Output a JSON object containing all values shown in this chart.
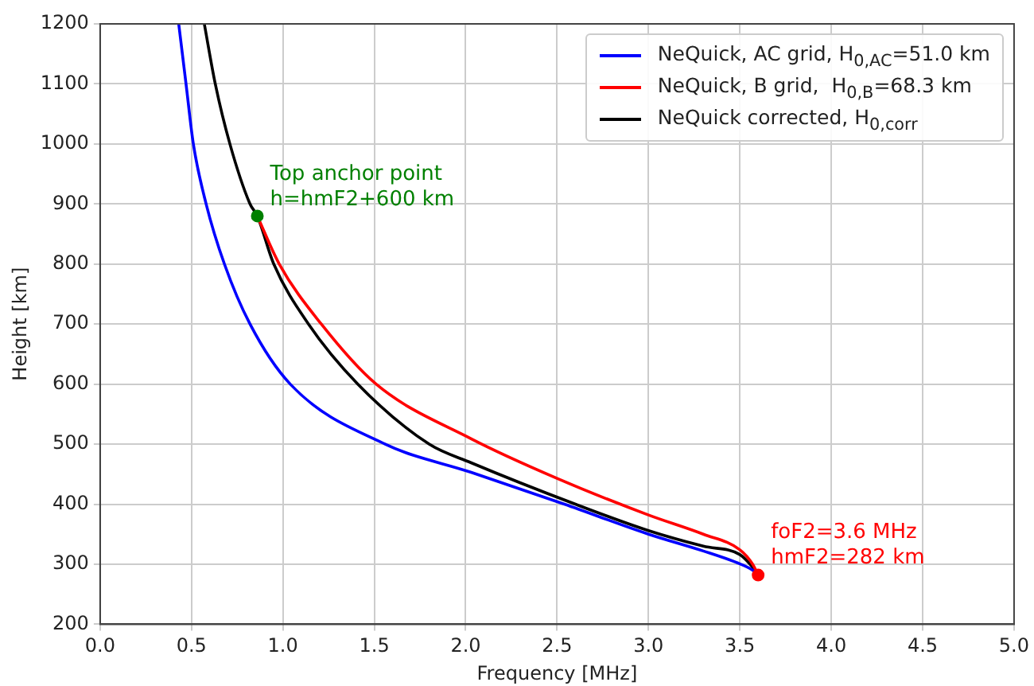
{
  "chart_data": {
    "type": "line",
    "xlabel": "Frequency [MHz]",
    "ylabel": "Height [km]",
    "xlim": [
      0,
      5
    ],
    "xticks": [
      {
        "value": 0,
        "label": "0.0"
      },
      {
        "value": 0.5,
        "label": "0.5"
      },
      {
        "value": 1,
        "label": "1.0"
      },
      {
        "value": 1.5,
        "label": "1.5"
      },
      {
        "value": 2,
        "label": "2.0"
      },
      {
        "value": 2.5,
        "label": "2.5"
      },
      {
        "value": 3,
        "label": "3.0"
      },
      {
        "value": 3.5,
        "label": "3.5"
      },
      {
        "value": 4,
        "label": "4.0"
      },
      {
        "value": 4.5,
        "label": "4.5"
      },
      {
        "value": 5,
        "label": "5.0"
      }
    ],
    "ylim": [
      200,
      1200
    ],
    "yticks": [
      200,
      300,
      400,
      500,
      600,
      700,
      800,
      900,
      1000,
      1100,
      1200
    ],
    "grid": true,
    "legend": "top right",
    "marker": "none",
    "line_style": "solid",
    "series": [
      {
        "name": "NeQuick, AC grid, H$_{0,AC}$=51.0 km",
        "color": "#0000ff",
        "x": [
          0.43,
          0.47,
          0.51,
          0.58,
          0.68,
          0.82,
          1.04,
          1.56,
          2.03,
          2.54,
          3.0,
          3.3,
          3.48,
          3.57,
          3.6
        ],
        "values": [
          1200,
          1100,
          1000,
          900,
          800,
          700,
          600,
          500,
          453,
          400,
          350,
          322,
          303,
          290,
          282
        ]
      },
      {
        "name": "NeQuick, B grid,  H$_{0,B}$=68.3 km",
        "color": "#ff0000",
        "x": [
          0.86,
          0.98,
          1.21,
          1.51,
          2.03,
          2.5,
          3.0,
          3.3,
          3.5,
          3.57,
          3.6
        ],
        "values": [
          880,
          800,
          700,
          600,
          509,
          443,
          382,
          350,
          324,
          300,
          282
        ]
      },
      {
        "name": "NeQuick corrected, H$_{0,corr}$",
        "color": "#000000",
        "x": [
          0.57,
          0.63,
          0.71,
          0.82,
          0.86,
          0.95,
          1.14,
          1.41,
          1.8,
          2.03,
          2.6,
          3.0,
          3.3,
          3.5,
          3.57,
          3.6
        ],
        "values": [
          1200,
          1100,
          1000,
          900,
          880,
          800,
          700,
          600,
          500,
          469,
          400,
          356,
          330,
          316,
          295,
          282
        ]
      },
      {
        "type": "scatter",
        "marker": "circle",
        "color": "#008000",
        "x": [
          0.86
        ],
        "values": [
          880
        ]
      },
      {
        "type": "scatter",
        "marker": "circle",
        "color": "#ff0000",
        "x": [
          3.6
        ],
        "values": [
          282
        ]
      }
    ],
    "annotations": [
      {
        "text": "Top anchor point\nh=hmF2+600 km",
        "x": 0.86,
        "y": 880
      },
      {
        "text": "foF2=3.6 MHz\nhmF2=282 km",
        "x": 3.6,
        "y": 282
      }
    ]
  }
}
